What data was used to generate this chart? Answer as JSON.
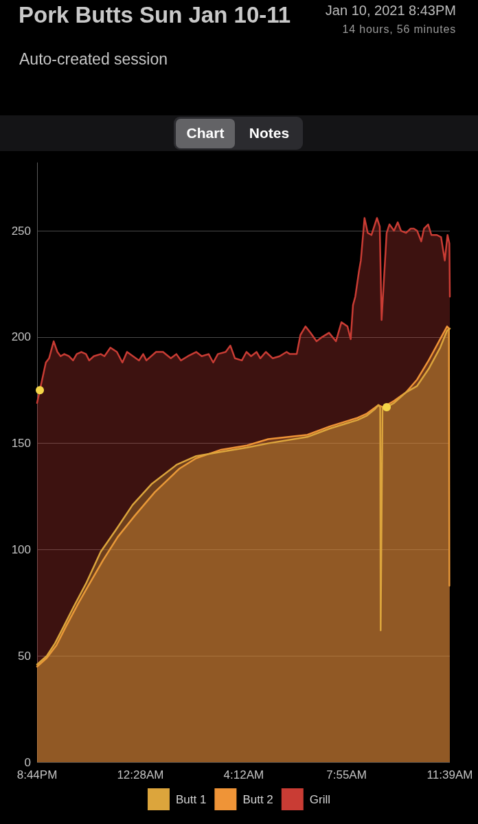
{
  "chart_data": {
    "type": "area",
    "title": "Pork Butts Sun Jan 10-11",
    "subtitle": "Auto-created session",
    "annotations": [
      "Jan 10, 2021 8:43PM",
      "14 hours, 56 minutes",
      "Chart",
      "Notes"
    ],
    "xlim": [
      "2021-01-10T20:44",
      "2021-01-11T11:39"
    ],
    "xticks": [
      {
        "value": "2021-01-10T20:44",
        "label": "8:44PM"
      },
      {
        "value": "2021-01-11T00:28",
        "label": "12:28AM"
      },
      {
        "value": "2021-01-11T04:12",
        "label": "4:12AM"
      },
      {
        "value": "2021-01-11T07:55",
        "label": "7:55AM"
      },
      {
        "value": "2021-01-11T11:39",
        "label": "11:39AM"
      }
    ],
    "ylim": [
      0,
      282
    ],
    "yticks": [
      0,
      50,
      100,
      150,
      200,
      250
    ],
    "grid": "y",
    "legend": "bottom",
    "series": [
      {
        "name": "Butt 1",
        "color": "#dca53c",
        "x": [
          "2021-01-10T20:44",
          "2021-01-10T21:05",
          "2021-01-10T21:23",
          "2021-01-10T21:42",
          "2021-01-10T22:03",
          "2021-01-10T22:30",
          "2021-01-10T23:02",
          "2021-01-10T23:34",
          "2021-01-11T00:11",
          "2021-01-11T00:53",
          "2021-01-11T01:47",
          "2021-01-11T02:29",
          "2021-01-11T03:23",
          "2021-01-11T04:19",
          "2021-01-11T05:05",
          "2021-01-11T06:30",
          "2021-01-11T07:19",
          "2021-01-11T08:19",
          "2021-01-11T08:39",
          "2021-01-11T08:56",
          "2021-01-11T09:04",
          "2021-01-11T09:08",
          "2021-01-11T09:09",
          "2021-01-11T09:13",
          "2021-01-11T09:22",
          "2021-01-11T09:38",
          "2021-01-11T10:04",
          "2021-01-11T10:28",
          "2021-01-11T10:53",
          "2021-01-11T11:18",
          "2021-01-11T11:33",
          "2021-01-11T11:39"
        ],
        "values": [
          46,
          50,
          56,
          64,
          73,
          84,
          99,
          109,
          121,
          131,
          140,
          144,
          146,
          148,
          150,
          153,
          157,
          161,
          163,
          166,
          168,
          167,
          62,
          167,
          167,
          169,
          174,
          177,
          185,
          195,
          203,
          204
        ]
      },
      {
        "name": "Butt 2",
        "color": "#ef9437",
        "x": [
          "2021-01-10T20:44",
          "2021-01-10T21:05",
          "2021-01-10T21:26",
          "2021-01-10T21:47",
          "2021-01-10T22:14",
          "2021-01-10T22:35",
          "2021-01-10T23:07",
          "2021-01-10T23:39",
          "2021-01-11T00:16",
          "2021-01-11T00:59",
          "2021-01-11T01:52",
          "2021-01-11T02:29",
          "2021-01-11T03:23",
          "2021-01-11T04:19",
          "2021-01-11T05:05",
          "2021-01-11T06:30",
          "2021-01-11T07:19",
          "2021-01-11T08:19",
          "2021-01-11T08:39",
          "2021-01-11T09:04",
          "2021-01-11T09:14",
          "2021-01-11T09:38",
          "2021-01-11T10:04",
          "2021-01-11T10:28",
          "2021-01-11T10:53",
          "2021-01-11T11:18",
          "2021-01-11T11:33",
          "2021-01-11T11:37",
          "2021-01-11T11:38",
          "2021-01-11T11:39"
        ],
        "values": [
          45,
          49,
          55,
          64,
          75,
          83,
          95,
          106,
          116,
          127,
          138,
          143,
          147,
          149,
          152,
          154,
          158,
          162,
          164,
          168,
          167,
          170,
          174,
          180,
          189,
          199,
          205,
          204,
          83,
          83
        ]
      },
      {
        "name": "Grill",
        "color": "#c93c34",
        "x": [
          "2021-01-10T20:44",
          "2021-01-10T20:50",
          "2021-01-10T21:03",
          "2021-01-10T21:10",
          "2021-01-10T21:20",
          "2021-01-10T21:28",
          "2021-01-10T21:35",
          "2021-01-10T21:43",
          "2021-01-10T21:53",
          "2021-01-10T22:02",
          "2021-01-10T22:10",
          "2021-01-10T22:20",
          "2021-01-10T22:30",
          "2021-01-10T22:37",
          "2021-01-10T22:47",
          "2021-01-10T23:02",
          "2021-01-10T23:10",
          "2021-01-10T23:23",
          "2021-01-10T23:37",
          "2021-01-10T23:49",
          "2021-01-10T23:59",
          "2021-01-11T00:12",
          "2021-01-11T00:25",
          "2021-01-11T00:34",
          "2021-01-11T00:41",
          "2021-01-11T01:02",
          "2021-01-11T01:17",
          "2021-01-11T01:34",
          "2021-01-11T01:46",
          "2021-01-11T01:56",
          "2021-01-11T02:11",
          "2021-01-11T02:29",
          "2021-01-11T02:41",
          "2021-01-11T02:56",
          "2021-01-11T03:06",
          "2021-01-11T03:16",
          "2021-01-11T03:33",
          "2021-01-11T03:43",
          "2021-01-11T03:53",
          "2021-01-11T04:08",
          "2021-01-11T04:18",
          "2021-01-11T04:28",
          "2021-01-11T04:40",
          "2021-01-11T04:48",
          "2021-01-11T05:00",
          "2021-01-11T05:15",
          "2021-01-11T05:30",
          "2021-01-11T05:45",
          "2021-01-11T05:52",
          "2021-01-11T06:07",
          "2021-01-11T06:15",
          "2021-01-11T06:26",
          "2021-01-11T06:37",
          "2021-01-11T06:50",
          "2021-01-11T07:02",
          "2021-01-11T07:17",
          "2021-01-11T07:32",
          "2021-01-11T07:44",
          "2021-01-11T07:57",
          "2021-01-11T08:04",
          "2021-01-11T08:09",
          "2021-01-11T08:14",
          "2021-01-11T08:22",
          "2021-01-11T08:26",
          "2021-01-11T08:34",
          "2021-01-11T08:41",
          "2021-01-11T08:49",
          "2021-01-11T09:01",
          "2021-01-11T09:07",
          "2021-01-11T09:11",
          "2021-01-11T09:22",
          "2021-01-11T09:28",
          "2021-01-11T09:38",
          "2021-01-11T09:46",
          "2021-01-11T09:53",
          "2021-01-11T10:04",
          "2021-01-11T10:14",
          "2021-01-11T10:21",
          "2021-01-11T10:28",
          "2021-01-11T10:37",
          "2021-01-11T10:43",
          "2021-01-11T10:52",
          "2021-01-11T10:59",
          "2021-01-11T11:11",
          "2021-01-11T11:20",
          "2021-01-11T11:28",
          "2021-01-11T11:34",
          "2021-01-11T11:38",
          "2021-01-11T11:39"
        ],
        "values": [
          169,
          175,
          188,
          190,
          198,
          193,
          191,
          192,
          191,
          189,
          192,
          193,
          192,
          189,
          191,
          192,
          191,
          195,
          193,
          188,
          193,
          191,
          189,
          192,
          189,
          193,
          193,
          190,
          192,
          189,
          191,
          193,
          191,
          192,
          188,
          192,
          193,
          196,
          190,
          189,
          193,
          191,
          193,
          190,
          193,
          190,
          191,
          193,
          192,
          192,
          201,
          205,
          202,
          198,
          200,
          202,
          198,
          207,
          205,
          199,
          215,
          219,
          231,
          236,
          256,
          249,
          248,
          256,
          252,
          208,
          249,
          253,
          250,
          254,
          250,
          249,
          251,
          251,
          250,
          245,
          251,
          253,
          248,
          248,
          247,
          236,
          248,
          244,
          219
        ]
      },
      {
        "type": "scatter",
        "color": "#f4d548",
        "x": [
          "2021-01-10T20:50",
          "2021-01-11T09:22"
        ],
        "values": [
          175,
          167
        ]
      }
    ]
  }
}
